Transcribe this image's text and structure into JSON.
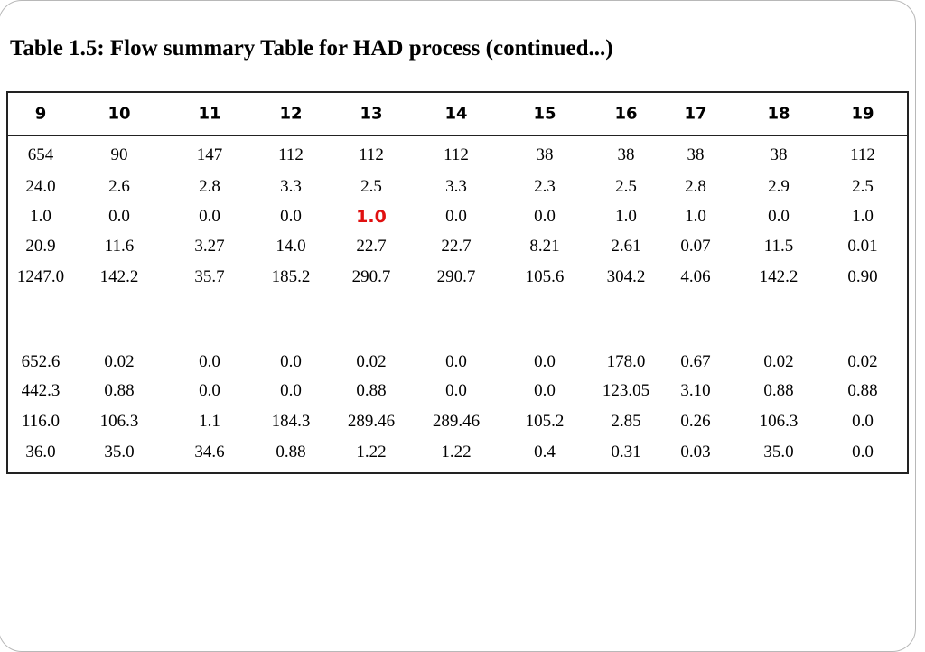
{
  "title": "Table 1.5: Flow summary Table for HAD process (continued...)",
  "table": {
    "header": [
      "9",
      "10",
      "11",
      "12",
      "13",
      "14",
      "15",
      "16",
      "17",
      "18",
      "19"
    ],
    "rows": [
      [
        "654",
        "90",
        "147",
        "112",
        "112",
        "112",
        "38",
        "38",
        "38",
        "38",
        "112"
      ],
      [
        "24.0",
        "2.6",
        "2.8",
        "3.3",
        "2.5",
        "3.3",
        "2.3",
        "2.5",
        "2.8",
        "2.9",
        "2.5"
      ],
      [
        "1.0",
        "0.0",
        "0.0",
        "0.0",
        "1.0",
        "0.0",
        "0.0",
        "1.0",
        "1.0",
        "0.0",
        "1.0"
      ],
      [
        "20.9",
        "11.6",
        "3.27",
        "14.0",
        "22.7",
        "22.7",
        "8.21",
        "2.61",
        "0.07",
        "11.5",
        "0.01"
      ],
      [
        "1247.0",
        "142.2",
        "35.7",
        "185.2",
        "290.7",
        "290.7",
        "105.6",
        "304.2",
        "4.06",
        "142.2",
        "0.90"
      ],
      [
        "652.6",
        "0.02",
        "0.0",
        "0.0",
        "0.02",
        "0.0",
        "0.0",
        "178.0",
        "0.67",
        "0.02",
        "0.02"
      ],
      [
        "442.3",
        "0.88",
        "0.0",
        "0.0",
        "0.88",
        "0.0",
        "0.0",
        "123.05",
        "3.10",
        "0.88",
        "0.88"
      ],
      [
        "116.0",
        "106.3",
        "1.1",
        "184.3",
        "289.46",
        "289.46",
        "105.2",
        "2.85",
        "0.26",
        "106.3",
        "0.0"
      ],
      [
        "36.0",
        "35.0",
        "34.6",
        "0.88",
        "1.22",
        "1.22",
        "0.4",
        "0.31",
        "0.03",
        "35.0",
        "0.0"
      ]
    ]
  }
}
